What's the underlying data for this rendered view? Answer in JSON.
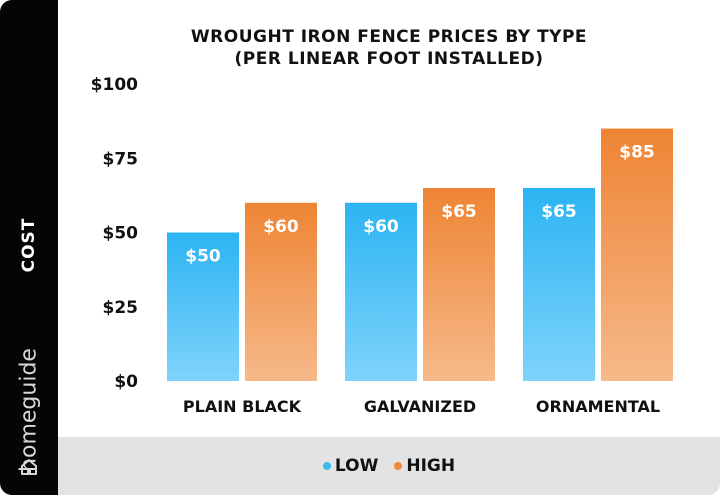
{
  "chart_data": {
    "type": "bar",
    "title": "WROUGHT IRON FENCE PRICES BY TYPE",
    "subtitle": "(PER LINEAR FOOT INSTALLED)",
    "ylabel": "COST",
    "xlabel": "",
    "categories": [
      "PLAIN BLACK",
      "GALVANIZED",
      "ORNAMENTAL"
    ],
    "series": [
      {
        "name": "LOW",
        "values": [
          50,
          60,
          65
        ],
        "labels": [
          "$50",
          "$60",
          "$65"
        ],
        "color": "#3db8f0"
      },
      {
        "name": "HIGH",
        "values": [
          60,
          65,
          85
        ],
        "labels": [
          "$60",
          "$65",
          "$85"
        ],
        "color": "#ef8a3c"
      }
    ],
    "ylim": [
      0,
      100
    ],
    "yticks": [
      0,
      25,
      50,
      75,
      100
    ],
    "ytick_labels": [
      "$0",
      "$25",
      "$50",
      "$75",
      "$100"
    ],
    "grid": false,
    "legend_position": "bottom"
  },
  "brand": {
    "name": "homeguide",
    "icon": "house-icon"
  },
  "colors": {
    "low_top": "#2cb4f2",
    "low_bottom": "#7fd3fb",
    "high_top": "#ee8434",
    "high_bottom": "#f6b98a",
    "sidebar": "#050505",
    "legend_bg": "#e3e3e3"
  }
}
